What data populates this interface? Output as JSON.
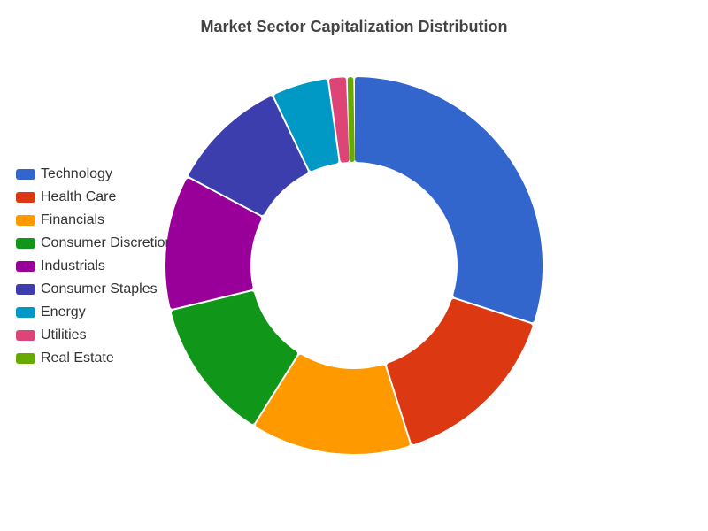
{
  "chart_data": {
    "type": "pie",
    "variant": "donut",
    "title": "Market Sector Capitalization Distribution",
    "legend_position": "left",
    "categories": [
      "Technology",
      "Health Care",
      "Financials",
      "Consumer Discretionary",
      "Industrials",
      "Consumer Staples",
      "Energy",
      "Utilities",
      "Real Estate"
    ],
    "values": [
      30.0,
      15.1,
      13.8,
      12.3,
      11.6,
      10.1,
      4.9,
      1.6,
      0.6
    ],
    "colors": [
      "#3366cc",
      "#dc3912",
      "#ff9900",
      "#109618",
      "#990099",
      "#3b3eac",
      "#0099c6",
      "#dd4477",
      "#66aa00"
    ]
  }
}
